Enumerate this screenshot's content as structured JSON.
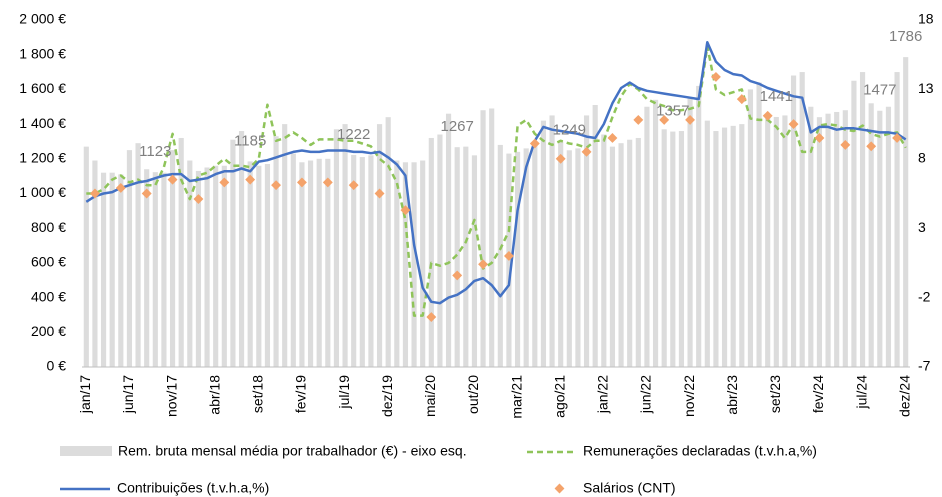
{
  "chart_data": {
    "type": "combo",
    "categories": [
      "jan/17",
      null,
      null,
      null,
      null,
      "jun/17",
      null,
      null,
      null,
      null,
      "nov/17",
      null,
      null,
      null,
      null,
      "abr/18",
      null,
      null,
      null,
      null,
      "set/18",
      null,
      null,
      null,
      null,
      "fev/19",
      null,
      null,
      null,
      null,
      "jul/19",
      null,
      null,
      null,
      null,
      "dez/19",
      null,
      null,
      null,
      null,
      "mai/20",
      null,
      null,
      null,
      null,
      "out/20",
      null,
      null,
      null,
      null,
      "mar/21",
      null,
      null,
      null,
      null,
      "ago/21",
      null,
      null,
      null,
      null,
      "jan/22",
      null,
      null,
      null,
      null,
      "jun/22",
      null,
      null,
      null,
      null,
      "nov/22",
      null,
      null,
      null,
      null,
      "abr/23",
      null,
      null,
      null,
      null,
      "set/23",
      null,
      null,
      null,
      null,
      "fev/24",
      null,
      null,
      null,
      null,
      "jul/24",
      null,
      null,
      null,
      null,
      "dez/24"
    ],
    "ylim": [
      0,
      2000
    ],
    "yticks": [
      {
        "value": 0,
        "label": "0 €"
      },
      {
        "value": 200,
        "label": "200 €"
      },
      {
        "value": 400,
        "label": "400 €"
      },
      {
        "value": 600,
        "label": "600 €"
      },
      {
        "value": 800,
        "label": "800 €"
      },
      {
        "value": 1000,
        "label": "1 000 €"
      },
      {
        "value": 1200,
        "label": "1 200 €"
      },
      {
        "value": 1400,
        "label": "1 400 €"
      },
      {
        "value": 1600,
        "label": "1 600 €"
      },
      {
        "value": 1800,
        "label": "1 800 €"
      },
      {
        "value": 2000,
        "label": "2 000 €"
      }
    ],
    "y2lim": [
      -7,
      18
    ],
    "y2ticks": [
      -7,
      -2,
      3,
      8,
      13,
      18
    ],
    "series": [
      {
        "name": "Rem. bruta mensal média por trabalhador (€) - eixo esq.",
        "type": "bar",
        "color": "#dcdcdc",
        "values": [
          1270,
          1190,
          1120,
          1120,
          1110,
          1250,
          1290,
          1140,
          1123,
          1120,
          1250,
          1320,
          1190,
          1130,
          1150,
          1160,
          1160,
          1310,
          1360,
          1185,
          1160,
          1170,
          1330,
          1400,
          1230,
          1180,
          1190,
          1200,
          1200,
          1370,
          1400,
          1222,
          1210,
          1220,
          1400,
          1440,
          1190,
          1180,
          1180,
          1190,
          1320,
          1340,
          1460,
          1267,
          1270,
          1220,
          1480,
          1490,
          1280,
          1230,
          1240,
          1260,
          1280,
          1420,
          1450,
          1300,
          1249,
          1260,
          1450,
          1510,
          1340,
          1270,
          1290,
          1310,
          1320,
          1500,
          1540,
          1370,
          1357,
          1360,
          1550,
          1620,
          1420,
          1360,
          1380,
          1390,
          1400,
          1600,
          1640,
          1450,
          1441,
          1450,
          1680,
          1700,
          1500,
          1440,
          1460,
          1470,
          1480,
          1650,
          1700,
          1520,
          1477,
          1500,
          1700,
          1786
        ],
        "value_labels": [
          null,
          null,
          null,
          null,
          null,
          null,
          null,
          null,
          "1123",
          null,
          null,
          null,
          null,
          null,
          null,
          null,
          null,
          null,
          null,
          "1185",
          null,
          null,
          null,
          null,
          null,
          null,
          null,
          null,
          null,
          null,
          null,
          "1222",
          null,
          null,
          null,
          null,
          null,
          null,
          null,
          null,
          null,
          null,
          null,
          "1267",
          null,
          null,
          null,
          null,
          null,
          null,
          null,
          null,
          null,
          null,
          null,
          null,
          "1249",
          null,
          null,
          null,
          null,
          null,
          null,
          null,
          null,
          null,
          null,
          null,
          "1357",
          null,
          null,
          null,
          null,
          null,
          null,
          null,
          null,
          null,
          null,
          null,
          "1441",
          null,
          null,
          null,
          null,
          null,
          null,
          null,
          null,
          null,
          null,
          null,
          "1477",
          null,
          null,
          "1786"
        ]
      },
      {
        "name": "Remunerações declaradas (t.v.h.a,%)",
        "type": "line",
        "axis": "y2",
        "color": "#8fc45a",
        "dash": true,
        "values": [
          5.5,
          5.5,
          5.8,
          6.5,
          6.8,
          6.3,
          6.5,
          6.1,
          6.1,
          7.4,
          9.8,
          6.5,
          5.1,
          6.8,
          7.0,
          7.5,
          8.0,
          7.5,
          7.5,
          7.4,
          8.0,
          11.9,
          9.3,
          9.5,
          9.9,
          9.5,
          9.0,
          9.4,
          9.4,
          9.4,
          9.3,
          9.3,
          9.1,
          8.9,
          8.0,
          7.5,
          6.3,
          3.6,
          -3.3,
          -3.3,
          0.5,
          0.3,
          0.5,
          1.1,
          2.0,
          3.6,
          0.1,
          0.5,
          1.5,
          2.8,
          10.4,
          10.8,
          9.8,
          9.3,
          9.0,
          9.3,
          9.1,
          9.0,
          8.8,
          9.3,
          9.3,
          11.0,
          12.5,
          13.4,
          13.0,
          12.3,
          12.0,
          11.8,
          11.5,
          11.5,
          11.6,
          11.8,
          16.1,
          13.0,
          12.6,
          12.8,
          13.0,
          10.9,
          10.8,
          10.8,
          10.3,
          9.5,
          10.5,
          8.5,
          8.5,
          10.4,
          10.5,
          10.4,
          10.1,
          10.0,
          10.4,
          9.8,
          9.6,
          9.8,
          9.9,
          8.8
        ]
      },
      {
        "name": "Contribuições (t.v.h.a,%)",
        "type": "line",
        "axis": "y2",
        "color": "#4472c4",
        "dash": false,
        "values": [
          4.9,
          5.3,
          5.5,
          5.6,
          5.9,
          6.1,
          6.3,
          6.4,
          6.6,
          6.8,
          6.9,
          6.9,
          6.4,
          6.5,
          6.6,
          6.9,
          7.1,
          7.1,
          7.3,
          7.1,
          7.8,
          7.9,
          8.1,
          8.3,
          8.5,
          8.6,
          8.5,
          8.5,
          8.6,
          8.6,
          8.6,
          8.5,
          8.5,
          8.4,
          8.5,
          8.1,
          7.6,
          6.8,
          1.8,
          -1.3,
          -2.3,
          -2.4,
          -2.0,
          -1.8,
          -1.4,
          -0.8,
          -0.6,
          -1.1,
          -1.9,
          -1.1,
          4.3,
          7.4,
          9.3,
          10.3,
          10.1,
          10.0,
          9.9,
          9.8,
          9.6,
          9.5,
          10.5,
          12.0,
          13.1,
          13.5,
          13.1,
          12.9,
          12.8,
          12.7,
          12.6,
          12.5,
          12.4,
          12.3,
          16.4,
          15.0,
          14.4,
          14.1,
          14.0,
          13.6,
          13.4,
          13.1,
          12.9,
          12.7,
          12.5,
          12.4,
          9.9,
          10.3,
          10.3,
          10.1,
          10.2,
          10.2,
          10.1,
          10.0,
          9.9,
          9.9,
          9.8,
          9.4
        ]
      },
      {
        "name": "Salários (CNT)",
        "type": "scatter",
        "axis": "y2",
        "color": "#f4a36b",
        "values": [
          null,
          5.5,
          null,
          null,
          5.9,
          null,
          null,
          5.5,
          null,
          null,
          6.5,
          null,
          null,
          5.1,
          null,
          null,
          6.3,
          null,
          null,
          6.5,
          null,
          null,
          6.1,
          null,
          null,
          6.3,
          null,
          null,
          6.3,
          null,
          null,
          6.1,
          null,
          null,
          5.5,
          null,
          null,
          4.3,
          null,
          null,
          -3.4,
          null,
          null,
          -0.4,
          null,
          null,
          0.4,
          null,
          null,
          1.0,
          null,
          null,
          9.1,
          null,
          null,
          8.0,
          null,
          null,
          8.5,
          null,
          null,
          9.5,
          null,
          null,
          10.8,
          null,
          null,
          10.8,
          null,
          null,
          10.8,
          null,
          null,
          13.9,
          null,
          null,
          12.3,
          null,
          null,
          11.1,
          null,
          null,
          10.5,
          null,
          null,
          9.5,
          null,
          null,
          9.0,
          null,
          null,
          8.9,
          null,
          null,
          9.5,
          null
        ]
      }
    ]
  }
}
